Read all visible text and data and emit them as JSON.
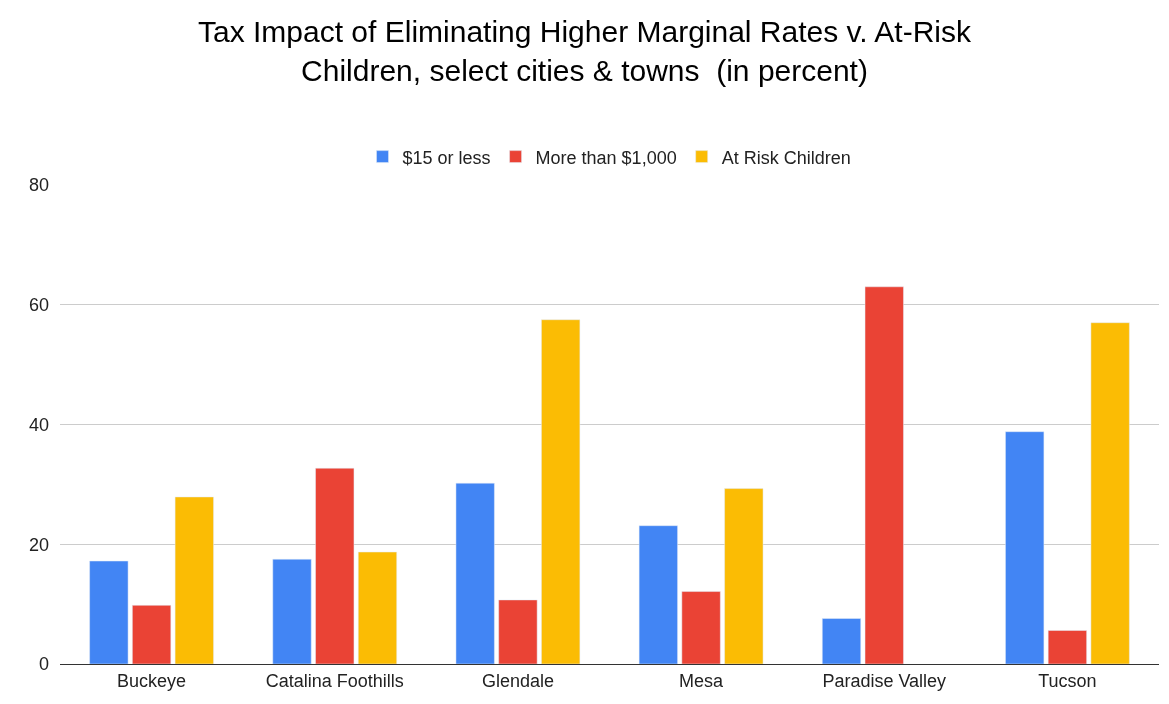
{
  "chart_data": {
    "type": "bar",
    "title": "Tax Impact of Eliminating Higher Marginal Rates v. At-Risk Children, select cities & towns  (in percent)",
    "categories": [
      "Buckeye",
      "Catalina Foothills",
      "Glendale",
      "Mesa",
      "Paradise Valley",
      "Tucson"
    ],
    "series": [
      {
        "name": "$15 or less",
        "color": "#4285f4",
        "values": [
          17.2,
          17.5,
          30.2,
          23.1,
          7.6,
          38.8
        ]
      },
      {
        "name": "More than $1,000",
        "color": "#ea4335",
        "values": [
          9.8,
          32.7,
          10.7,
          12.1,
          63.0,
          5.6
        ]
      },
      {
        "name": "At Risk Children",
        "color": "#fbbc04",
        "values": [
          27.9,
          18.7,
          57.5,
          29.3,
          null,
          57.0
        ]
      }
    ],
    "ylim": [
      0,
      80
    ],
    "yticks": [
      0,
      20,
      40,
      60,
      80
    ],
    "grid": "y",
    "legend": "top"
  }
}
